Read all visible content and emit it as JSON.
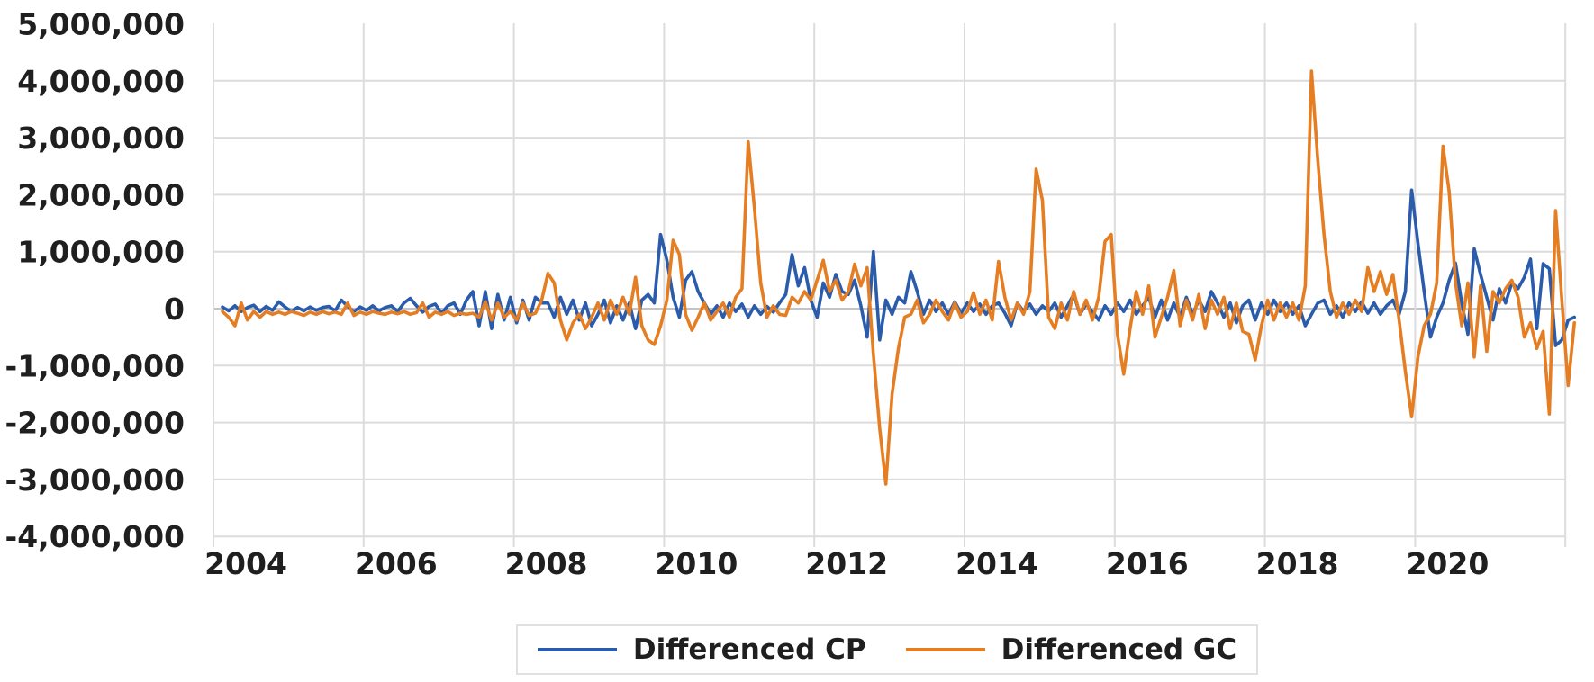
{
  "chart_data": {
    "type": "line",
    "title": "",
    "grid": true,
    "legend_position": "bottom",
    "x_axis": {
      "tick_labels": [
        "2004",
        "2006",
        "2008",
        "2010",
        "2012",
        "2014",
        "2016",
        "2018",
        "2020"
      ],
      "start": "2003-09",
      "end": "2021-09",
      "interval": "monthly"
    },
    "y_axis": {
      "tick_labels": [
        "5,000,000",
        "4,000,000",
        "3,000,000",
        "2,000,000",
        "1,000,000",
        "0",
        "-1,000,000",
        "-2,000,000",
        "-3,000,000",
        "-4,000,000"
      ],
      "tick_values_millions": [
        5,
        4,
        3,
        2,
        1,
        0,
        -1,
        -2,
        -3,
        -4
      ],
      "ylim_millions": [
        -4,
        5
      ]
    },
    "series": [
      {
        "name": "Differenced CP",
        "color": "#2B5CAB",
        "values_millions": [
          0.03,
          -0.04,
          0.05,
          -0.05,
          0.02,
          0.06,
          -0.05,
          0.04,
          -0.03,
          0.12,
          0.03,
          -0.05,
          0.02,
          -0.04,
          0.03,
          -0.03,
          0.02,
          0.04,
          -0.04,
          0.15,
          0.04,
          -0.05,
          0.03,
          -0.03,
          0.05,
          -0.04,
          0.02,
          0.05,
          -0.05,
          0.1,
          0.18,
          0.05,
          -0.06,
          0.04,
          0.08,
          -0.08,
          0.05,
          0.1,
          -0.1,
          0.15,
          0.3,
          -0.3,
          0.3,
          -0.35,
          0.25,
          -0.2,
          0.2,
          -0.25,
          0.15,
          -0.2,
          0.2,
          0.1,
          0.1,
          -0.15,
          0.2,
          -0.1,
          0.15,
          -0.2,
          0.1,
          -0.3,
          -0.1,
          0.15,
          -0.25,
          0.05,
          -0.2,
          0.1,
          -0.35,
          0.15,
          0.25,
          0.1,
          1.3,
          0.85,
          0.2,
          -0.15,
          0.5,
          0.65,
          0.3,
          0.1,
          -0.1,
          0.05,
          -0.15,
          0.1,
          -0.05,
          0.08,
          -0.15,
          0.05,
          -0.1,
          0.04,
          -0.06,
          0.1,
          0.25,
          0.95,
          0.4,
          0.72,
          0.15,
          -0.15,
          0.45,
          0.2,
          0.6,
          0.3,
          0.25,
          0.5,
          0.05,
          -0.5,
          1.0,
          -0.55,
          0.15,
          -0.1,
          0.2,
          0.1,
          0.65,
          0.3,
          -0.1,
          0.15,
          -0.05,
          0.1,
          -0.1,
          0.12,
          -0.08,
          0.1,
          -0.05,
          0.08,
          -0.1,
          0.05,
          0.1,
          -0.08,
          -0.3,
          0.1,
          -0.05,
          0.08,
          -0.1,
          0.05,
          -0.05,
          0.1,
          -0.15,
          0.05,
          0.25,
          -0.1,
          0.08,
          -0.05,
          -0.2,
          0.05,
          -0.1,
          0.1,
          -0.05,
          0.15,
          -0.1,
          0.05,
          0.2,
          -0.15,
          0.15,
          -0.2,
          0.1,
          -0.15,
          0.2,
          -0.1,
          0.15,
          -0.05,
          0.3,
          0.1,
          -0.15,
          0.1,
          -0.25,
          0.05,
          0.15,
          -0.2,
          0.1,
          -0.1,
          0.15,
          -0.05,
          0.1,
          -0.1,
          0.05,
          -0.3,
          -0.1,
          0.1,
          0.15,
          -0.1,
          0.05,
          -0.15,
          0.1,
          -0.05,
          0.12,
          -0.08,
          0.1,
          -0.1,
          0.05,
          0.15,
          -0.1,
          0.3,
          2.08,
          1.15,
          0.3,
          -0.5,
          -0.15,
          0.1,
          0.5,
          0.8,
          0.1,
          -0.45,
          1.05,
          0.6,
          0.2,
          -0.2,
          0.35,
          0.1,
          0.45,
          0.35,
          0.55,
          0.87,
          -0.35,
          0.79,
          0.7,
          -0.65,
          -0.55,
          -0.2,
          -0.15
        ]
      },
      {
        "name": "Differenced GC",
        "color": "#E57E22",
        "values_millions": [
          -0.05,
          -0.15,
          -0.3,
          0.1,
          -0.2,
          -0.05,
          -0.15,
          -0.05,
          -0.1,
          -0.06,
          -0.1,
          -0.05,
          -0.08,
          -0.12,
          -0.06,
          -0.1,
          -0.05,
          -0.09,
          -0.06,
          -0.1,
          0.1,
          -0.12,
          -0.06,
          -0.1,
          -0.05,
          -0.08,
          -0.1,
          -0.06,
          -0.09,
          -0.05,
          -0.1,
          -0.07,
          0.1,
          -0.15,
          -0.06,
          -0.1,
          -0.05,
          -0.12,
          -0.08,
          -0.1,
          -0.08,
          -0.15,
          0.12,
          -0.2,
          0.1,
          -0.15,
          -0.05,
          -0.2,
          0.1,
          -0.12,
          -0.08,
          0.15,
          0.62,
          0.45,
          -0.2,
          -0.55,
          -0.25,
          -0.1,
          -0.35,
          -0.15,
          0.1,
          -0.2,
          0.15,
          -0.1,
          0.2,
          -0.1,
          0.55,
          -0.3,
          -0.55,
          -0.63,
          -0.3,
          0.15,
          1.2,
          0.95,
          -0.1,
          -0.38,
          -0.15,
          0.1,
          -0.2,
          -0.05,
          0.1,
          -0.15,
          0.2,
          0.35,
          2.93,
          1.75,
          0.45,
          -0.15,
          0.05,
          -0.1,
          -0.12,
          0.2,
          0.1,
          0.3,
          0.15,
          0.5,
          0.85,
          0.3,
          0.5,
          0.15,
          0.3,
          0.78,
          0.4,
          0.72,
          -0.8,
          -2.1,
          -3.08,
          -1.5,
          -0.7,
          -0.15,
          -0.1,
          0.15,
          -0.25,
          -0.1,
          0.15,
          -0.05,
          -0.2,
          0.1,
          -0.15,
          -0.05,
          0.28,
          -0.1,
          0.15,
          -0.2,
          0.83,
          0.2,
          -0.2,
          0.1,
          -0.1,
          0.3,
          2.45,
          1.9,
          -0.15,
          -0.35,
          0.1,
          -0.2,
          0.3,
          -0.1,
          0.15,
          -0.2,
          0.2,
          1.18,
          1.3,
          -0.45,
          -1.15,
          -0.35,
          0.3,
          -0.1,
          0.4,
          -0.5,
          -0.15,
          0.2,
          0.67,
          -0.3,
          0.15,
          -0.2,
          0.25,
          -0.35,
          0.15,
          -0.1,
          0.2,
          -0.35,
          0.1,
          -0.4,
          -0.45,
          -0.9,
          -0.3,
          0.15,
          -0.2,
          0.1,
          -0.15,
          0.1,
          -0.2,
          0.4,
          4.17,
          2.6,
          1.3,
          0.3,
          -0.15,
          0.1,
          -0.1,
          0.15,
          -0.05,
          0.72,
          0.3,
          0.65,
          0.25,
          0.6,
          -0.2,
          -1.1,
          -1.9,
          -0.85,
          -0.3,
          -0.1,
          0.45,
          2.85,
          2.05,
          0.45,
          -0.3,
          0.45,
          -0.85,
          0.4,
          -0.75,
          0.3,
          0.1,
          0.35,
          0.5,
          0.2,
          -0.5,
          -0.25,
          -0.7,
          -0.4,
          -1.85,
          1.72,
          0.15,
          -1.35,
          -0.25
        ]
      }
    ]
  },
  "colors": {
    "grid": "#dcdcdc",
    "zero_line": "#c4c4c4",
    "text": "#1f1f1f",
    "background": "#ffffff",
    "legend_border": "#e0e0e0"
  }
}
